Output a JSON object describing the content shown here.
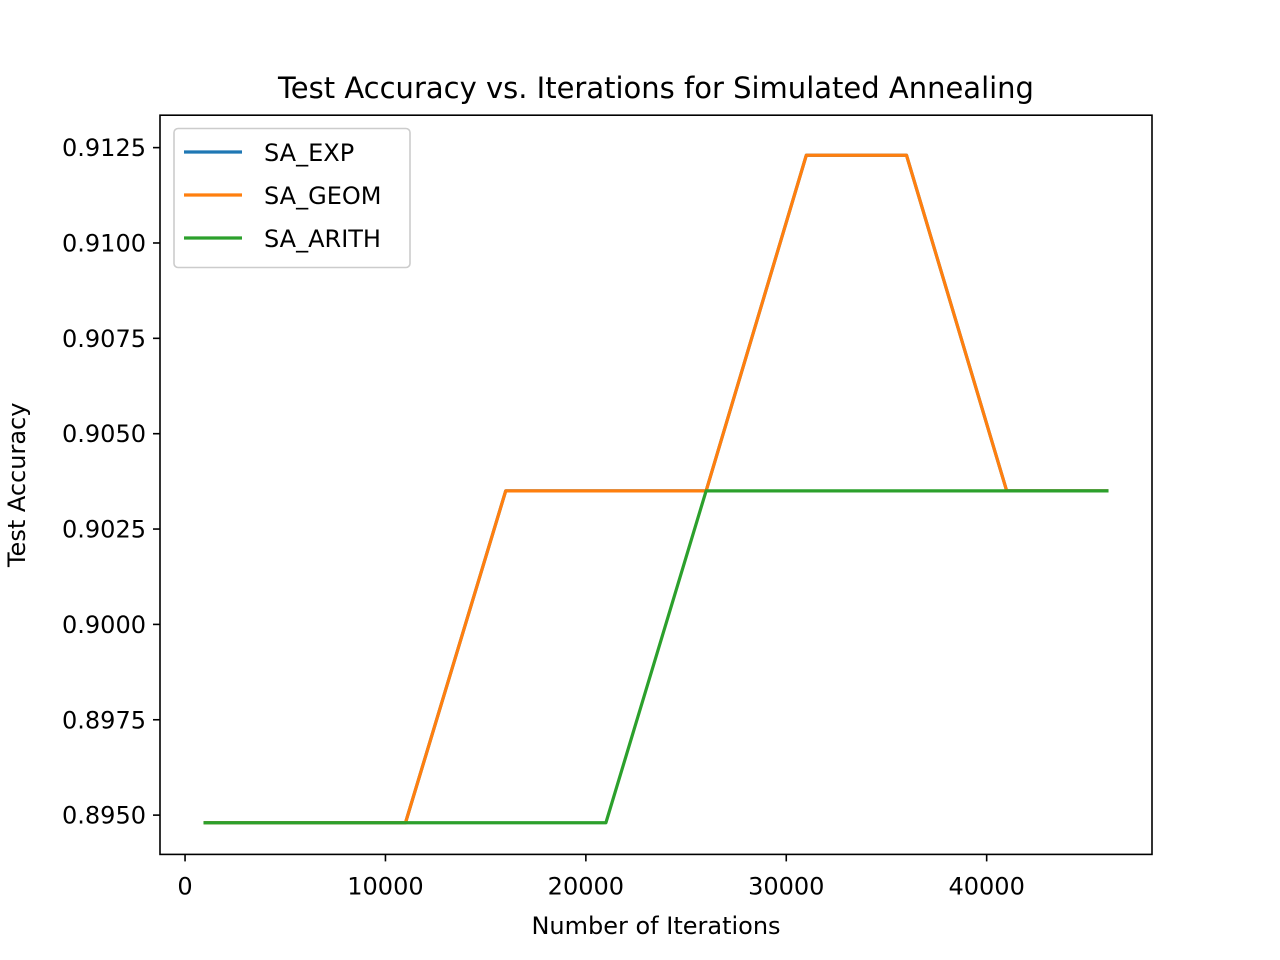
{
  "chart_data": {
    "type": "line",
    "title": "Test Accuracy vs. Iterations  for Simulated Annealing",
    "xlabel": "Number of Iterations",
    "ylabel": "Test Accuracy",
    "xlim": [
      -1250,
      48250
    ],
    "ylim": [
      0.89397,
      0.91335
    ],
    "xticks": [
      0,
      10000,
      20000,
      30000,
      40000
    ],
    "yticks": [
      0.895,
      0.8975,
      0.9,
      0.9025,
      0.905,
      0.9075,
      0.91,
      0.9125
    ],
    "ytick_labels": [
      "0.8950",
      "0.8975",
      "0.9000",
      "0.9025",
      "0.9050",
      "0.9075",
      "0.9100",
      "0.9125"
    ],
    "grid": false,
    "legend_position": "top-left",
    "series": [
      {
        "name": "SA_EXP",
        "color": "#1f77b4",
        "x": [
          1000,
          6000,
          11000,
          16000,
          21000,
          26000,
          31000,
          36000,
          41000,
          46000
        ],
        "y": [
          0.8948,
          0.8948,
          0.8948,
          0.9035,
          0.9035,
          0.9035,
          0.9123,
          0.9123,
          0.9035,
          0.9035
        ]
      },
      {
        "name": "SA_GEOM",
        "color": "#ff7f0e",
        "x": [
          1000,
          6000,
          11000,
          16000,
          21000,
          26000,
          31000,
          36000,
          41000,
          46000
        ],
        "y": [
          0.8948,
          0.8948,
          0.8948,
          0.9035,
          0.9035,
          0.9035,
          0.9123,
          0.9123,
          0.9035,
          0.9035
        ]
      },
      {
        "name": "SA_ARITH",
        "color": "#2ca02c",
        "x": [
          1000,
          6000,
          11000,
          16000,
          21000,
          26000,
          31000,
          36000,
          41000,
          46000
        ],
        "y": [
          0.8948,
          0.8948,
          0.8948,
          0.8948,
          0.8948,
          0.9035,
          0.9035,
          0.9035,
          0.9035,
          0.9035
        ]
      }
    ]
  }
}
